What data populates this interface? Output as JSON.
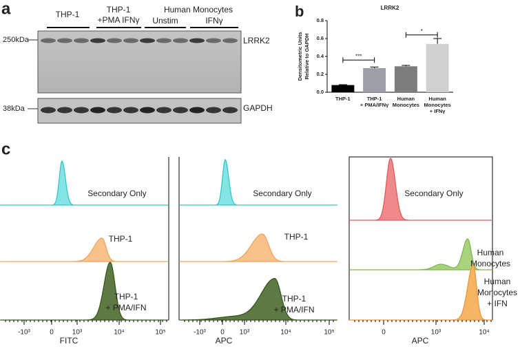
{
  "panel_a": {
    "label": "a",
    "groups": [
      [
        "THP-1"
      ],
      [
        "THP-1",
        "+PMA IFNγ"
      ],
      [
        "Human Monocytes"
      ]
    ],
    "subgroups": [
      "Unstim",
      "IFNγ"
    ],
    "blots": [
      {
        "size": "250kDa",
        "protein": "LRRK2"
      },
      {
        "size": "38kDa",
        "protein": "GAPDH"
      }
    ]
  },
  "chart_data": {
    "type": "bar",
    "panel_label": "b",
    "title": "LRRK2",
    "y_label": [
      "Densitometric Units",
      "Relative to  GAPDH"
    ],
    "categories": [
      [
        "THP-1"
      ],
      [
        "THP-1",
        "+ PMA/IFNγ"
      ],
      [
        "Human",
        "Monocytes"
      ],
      [
        "Human",
        "Monocytes",
        "+ IFNγ"
      ]
    ],
    "values": [
      0.08,
      0.27,
      0.29,
      0.54
    ],
    "errors": [
      0.005,
      0.012,
      0.01,
      0.06
    ],
    "colors": [
      "#000000",
      "#9e9ea6",
      "#7d7d7d",
      "#d0d0d0"
    ],
    "ylim": [
      0,
      0.8
    ],
    "yticks": [
      {
        "value": 0,
        "label": "0.0"
      },
      0.2,
      0.4,
      0.6,
      0.8
    ],
    "annotations": [
      "***",
      "*"
    ]
  },
  "panel_c": {
    "label": "c",
    "plots": [
      {
        "x_label": "FITC",
        "ticks": [
          "-10³",
          "0",
          "10³",
          "10⁴",
          "10⁵"
        ],
        "histograms": [
          [
            "Secondary Only"
          ],
          [
            "THP-1"
          ],
          [
            "THP-1",
            "+ PMA/IFN"
          ]
        ]
      },
      {
        "x_label": "APC",
        "ticks": [
          "-10³",
          "0",
          "10³",
          "10⁴",
          "10⁵"
        ],
        "histograms": [
          [
            "Secondary Only"
          ],
          [
            "THP-1"
          ],
          [
            "THP-1",
            "+ PMA/IFN"
          ]
        ]
      },
      {
        "x_label": "APC",
        "ticks": [
          "0",
          "10³",
          "10⁴"
        ],
        "histograms": [
          [
            "Secondary Only"
          ],
          [
            "Human",
            "Monocytes"
          ],
          [
            "Human",
            "Monocytes",
            "+ IFN"
          ]
        ]
      }
    ]
  }
}
